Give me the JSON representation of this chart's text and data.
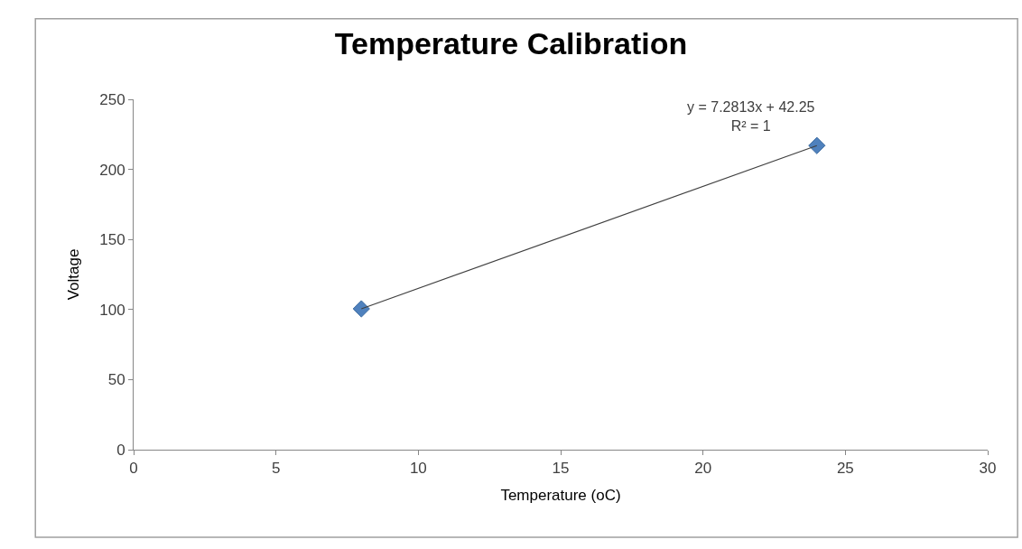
{
  "chart_data": {
    "type": "scatter",
    "title": "Temperature Calibration",
    "xlabel": "Temperature (oC)",
    "ylabel": "Voltage",
    "annotations": [
      "y = 7.2813x + 42.25\nR² = 1"
    ],
    "series": [
      {
        "color": "#4f81bd",
        "values": [
          100.5,
          217
        ]
      },
      {
        "type": "line",
        "color": "#404040",
        "x": [
          8,
          24
        ],
        "values": [
          100.5,
          217
        ],
        "marker": "none"
      }
    ],
    "x": [
      8,
      24
    ],
    "marker": "diamond",
    "xlim": [
      0,
      30
    ],
    "xticks": [
      0,
      5,
      10,
      15,
      20,
      25,
      30
    ],
    "ylim": [
      0,
      250
    ],
    "yticks": [
      0,
      50,
      100,
      150,
      200,
      250
    ],
    "grid": false,
    "legend": false
  }
}
